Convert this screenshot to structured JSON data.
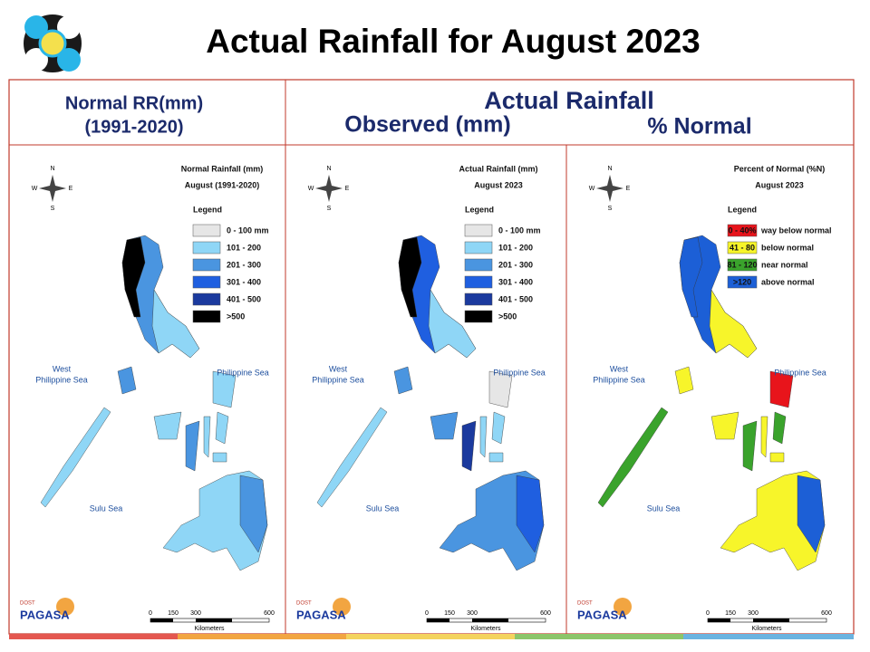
{
  "title": "Actual Rainfall for August 2023",
  "headers": {
    "normal": [
      "Normal RR(mm)",
      "(1991-2020)"
    ],
    "actual": "Actual Rainfall",
    "observed": "Observed (mm)",
    "percent": "% Normal"
  },
  "compass": {
    "n": "N",
    "e": "E",
    "s": "S",
    "w": "W"
  },
  "seas": {
    "west": [
      "West",
      "Philippine Sea"
    ],
    "east": "Philippine Sea",
    "sulu": "Sulu Sea"
  },
  "scale": {
    "ticks": [
      "0",
      "150",
      "300",
      "600"
    ],
    "unit": "Kilometers"
  },
  "logo": {
    "top": "DOST",
    "name": "PAGASA"
  },
  "panels": [
    {
      "map_title": [
        "Normal Rainfall (mm)",
        "August (1991-2020)"
      ],
      "legend_title": "Legend",
      "legend": [
        {
          "label": "0 - 100 mm",
          "color": "#e6e6e6"
        },
        {
          "label": "101 - 200",
          "color": "#8fd6f6"
        },
        {
          "label": "201 - 300",
          "color": "#4a95e0"
        },
        {
          "label": "301 - 400",
          "color": "#1f5fe0"
        },
        {
          "label": "401 - 500",
          "color": "#1b3a9e"
        },
        {
          "label": ">500",
          "color": "#000000"
        }
      ]
    },
    {
      "map_title": [
        "Actual Rainfall (mm)",
        "August 2023"
      ],
      "legend_title": "Legend",
      "legend": [
        {
          "label": "0 - 100 mm",
          "color": "#e6e6e6"
        },
        {
          "label": "101 - 200",
          "color": "#8fd6f6"
        },
        {
          "label": "201 - 300",
          "color": "#4a95e0"
        },
        {
          "label": "301 - 400",
          "color": "#1f5fe0"
        },
        {
          "label": "401 - 500",
          "color": "#1b3a9e"
        },
        {
          "label": ">500",
          "color": "#000000"
        }
      ]
    },
    {
      "map_title": [
        "Percent of Normal (%N)",
        "August 2023"
      ],
      "legend_title": "Legend",
      "legend": [
        {
          "label": "0 - 40%",
          "note": "way below normal",
          "color": "#e8141b"
        },
        {
          "label": "41 - 80",
          "note": "below normal",
          "color": "#f7f52a"
        },
        {
          "label": "81 - 120",
          "note": "near normal",
          "color": "#3aa32c"
        },
        {
          "label": ">120",
          "note": "above normal",
          "color": "#1c5fd6"
        }
      ]
    }
  ]
}
